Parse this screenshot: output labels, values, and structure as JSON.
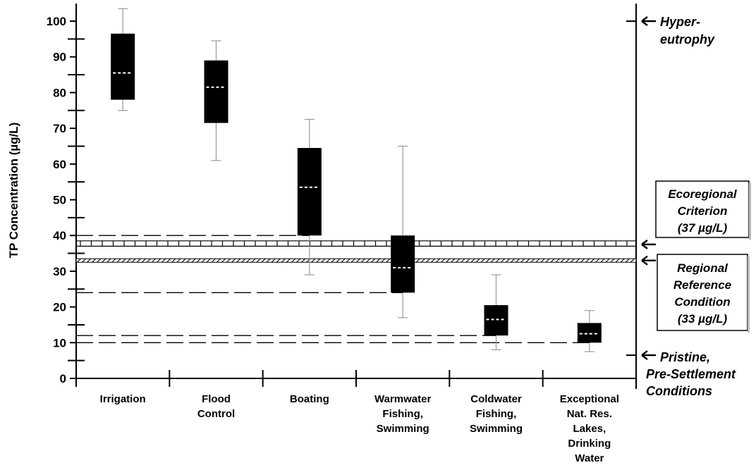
{
  "chart_data": {
    "type": "box",
    "title": "",
    "xlabel": "",
    "ylabel": "TP Concentration (µg/L)",
    "ylim": [
      0,
      100
    ],
    "y_ticks": [
      "0",
      "10",
      "20",
      "30",
      "40",
      "50",
      "60",
      "70",
      "80",
      "90",
      "100"
    ],
    "grid": false,
    "categories": [
      "Irrigation",
      "Flood\nControl",
      "Boating",
      "Warmwater\nFishing,\nSwimming",
      "Coldwater\nFishing,\nSwimming",
      "Exceptional\nNat. Res.\nLakes,\nDrinking\nWater"
    ],
    "boxes": [
      {
        "whisker_low": 75,
        "q1": 78,
        "median": 85.5,
        "q3": 96.5,
        "whisker_high": 103.5
      },
      {
        "whisker_low": 61,
        "q1": 71.5,
        "median": 81.5,
        "q3": 89,
        "whisker_high": 94.5
      },
      {
        "whisker_low": 29,
        "q1": 40,
        "median": 53.5,
        "q3": 64.5,
        "whisker_high": 72.5
      },
      {
        "whisker_low": 17,
        "q1": 24,
        "median": 31,
        "q3": 40,
        "whisker_high": 65
      },
      {
        "whisker_low": 8,
        "q1": 12,
        "median": 16.5,
        "q3": 20.5,
        "whisker_high": 29
      },
      {
        "whisker_low": 7.5,
        "q1": 10,
        "median": 12.5,
        "q3": 15.5,
        "whisker_high": 19
      }
    ],
    "dashed_lines": [
      {
        "y": 40,
        "to_category_index": 2
      },
      {
        "y": 24,
        "to_category_index": 3
      },
      {
        "y": 12,
        "to_category_index": 4
      },
      {
        "y": 10,
        "to_category_index": 5
      }
    ],
    "criterion_band": [
      37,
      38.5
    ],
    "reference_band": [
      32.5,
      33.5
    ],
    "right_axis_marks": [
      100,
      6.5
    ],
    "right_labels": {
      "hyper_1": "Hyper-",
      "hyper_2": "eutrophy",
      "pristine_1": "Pristine,",
      "pristine_2": "Pre-Settlement",
      "pristine_3": "Conditions"
    },
    "criterion_box": {
      "line1": "Ecoregional",
      "line2": "Criterion",
      "line3": "(37 µg/L)",
      "y": 37.5
    },
    "reference_box": {
      "line1": "Regional",
      "line2": "Reference",
      "line3": "Condition",
      "line4": "(33 µg/L)",
      "y": 33
    }
  }
}
